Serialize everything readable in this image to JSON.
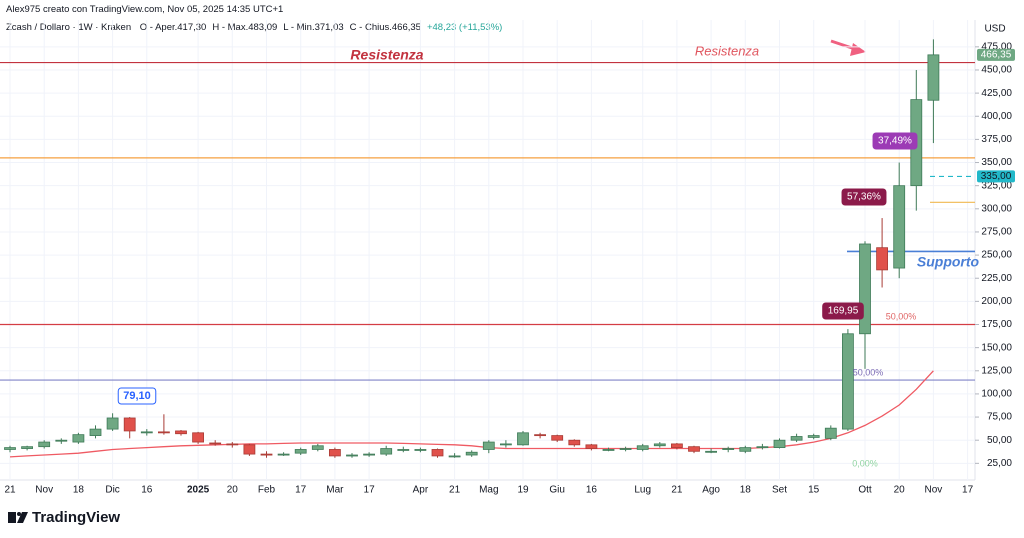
{
  "header": "Alex975 creato con TradingView.com, Nov 05, 2025 14:35 UTC+1",
  "brand": "TradingView",
  "chart_data": {
    "type": "candlestick",
    "title": "Zcash / Dollaro · 1W · Kraken",
    "legend_items": [
      "O - Aper.417,30",
      "H - Max.483,09",
      "L - Min.371,03",
      "C - Chius.466,35",
      "+48,23 (+11,53%)"
    ],
    "y_axis_label": "USD",
    "categories": [
      "21",
      null,
      "Nov",
      null,
      "18",
      null,
      "Dic",
      null,
      "16",
      null,
      null,
      "2025",
      null,
      "20",
      null,
      "Feb",
      null,
      "17",
      null,
      "Mar",
      null,
      "17",
      null,
      null,
      "Apr",
      null,
      "21",
      null,
      "Mag",
      null,
      "19",
      null,
      "Giu",
      null,
      "16",
      null,
      null,
      "Lug",
      null,
      "21",
      null,
      "Ago",
      null,
      "18",
      null,
      "Set",
      null,
      "15",
      null,
      null,
      "Ott",
      null,
      "20",
      null,
      "Nov",
      null,
      "17"
    ],
    "open": [
      40,
      41,
      43,
      49,
      48,
      55,
      62,
      74,
      58,
      59,
      60,
      58,
      47,
      46,
      45,
      35,
      35,
      36,
      40,
      40,
      33,
      34,
      35,
      40,
      40,
      40,
      33,
      34,
      40,
      46,
      45,
      56,
      55,
      50,
      45,
      40,
      40,
      40,
      44,
      46,
      43,
      38,
      40,
      38,
      42,
      42,
      50,
      53,
      52,
      62,
      165,
      258,
      236,
      325,
      417.3,
      null,
      null
    ],
    "high": [
      44,
      44,
      50,
      52,
      58,
      66,
      79.1,
      75,
      62,
      78,
      61,
      59,
      50,
      48,
      46,
      38,
      37,
      42,
      46,
      42,
      36,
      37,
      44,
      43,
      42,
      41,
      36,
      39,
      50,
      50,
      60,
      58,
      56,
      51,
      46,
      42,
      43,
      46,
      48,
      47,
      44,
      41,
      43,
      44,
      46,
      52,
      57,
      57,
      66,
      170,
      265,
      290,
      350,
      450,
      483.09,
      null,
      null
    ],
    "low": [
      37,
      39,
      41,
      46,
      46,
      52,
      60,
      52,
      55,
      56,
      55,
      46,
      44,
      42,
      33,
      31,
      33,
      34,
      38,
      31,
      31,
      32,
      33,
      37,
      37,
      31,
      31,
      32,
      36,
      42,
      44,
      52,
      48,
      43,
      39,
      38,
      38,
      38,
      42,
      40,
      36,
      36,
      37,
      36,
      40,
      41,
      48,
      51,
      50,
      60,
      127,
      215,
      225,
      298,
      371.03,
      null,
      null
    ],
    "close": [
      42,
      43,
      48,
      50,
      56,
      62,
      74,
      60,
      59,
      58,
      57,
      48,
      46,
      45,
      35,
      34,
      35,
      40,
      44,
      33,
      34,
      35,
      41,
      40,
      40,
      33,
      33,
      37,
      48,
      46,
      58,
      55,
      50,
      45,
      41,
      40,
      41,
      44,
      46,
      42,
      38,
      38,
      41,
      42,
      43,
      50,
      54,
      55,
      63,
      165,
      262,
      234,
      325,
      418,
      466.35,
      null,
      null
    ],
    "moving_average": [
      32,
      33,
      34,
      35,
      36,
      38,
      40,
      41,
      42,
      43,
      44,
      44.5,
      45,
      45.5,
      46,
      46,
      46.5,
      47,
      47,
      47,
      47,
      47,
      47,
      46.5,
      46,
      45.5,
      45,
      44,
      42,
      41,
      41,
      41,
      41,
      41,
      41,
      41,
      41,
      41,
      41,
      41,
      41,
      41,
      41,
      41,
      42,
      43,
      45,
      48,
      52,
      58,
      66,
      76,
      88,
      105,
      125,
      null,
      null
    ],
    "up_color": "#6fa883",
    "down_color": "#e0514b",
    "ma_color": "#ef5a63",
    "ylim": [
      7,
      504
    ],
    "yticks": [
      {
        "value": 25,
        "label": "25,00"
      },
      {
        "value": 50,
        "label": "50,00"
      },
      {
        "value": 75,
        "label": "75,00"
      },
      {
        "value": 100,
        "label": "100,00"
      },
      {
        "value": 125,
        "label": "125,00"
      },
      {
        "value": 150,
        "label": "150,00"
      },
      {
        "value": 175,
        "label": "175,00"
      },
      {
        "value": 200,
        "label": "200,00"
      },
      {
        "value": 225,
        "label": "225,00"
      },
      {
        "value": 250,
        "label": "250,00"
      },
      {
        "value": 275,
        "label": "275,00"
      },
      {
        "value": 300,
        "label": "300,00"
      },
      {
        "value": 325,
        "label": "325,00"
      },
      {
        "value": 350,
        "label": "350,00"
      },
      {
        "value": 375,
        "label": "375,00"
      },
      {
        "value": 400,
        "label": "400,00"
      },
      {
        "value": 425,
        "label": "425,00"
      },
      {
        "value": 450,
        "label": "450,00"
      },
      {
        "value": 475,
        "label": "475,00"
      }
    ],
    "grid": true,
    "levels": [
      {
        "value": 458,
        "color": "#c2333f"
      },
      {
        "value": 355,
        "color": "#f5a040"
      },
      {
        "value": 175,
        "color": "#d43d44"
      },
      {
        "value": 115,
        "color": "#8084c8"
      },
      {
        "value": 254,
        "color": "#4a7fd6"
      },
      {
        "value": 307,
        "color": "#f0b850"
      },
      {
        "value": 335,
        "color": "#22b8c9"
      }
    ],
    "price_labels": [
      {
        "value": 466.35,
        "label": "466,35",
        "color": "#6fa883"
      },
      {
        "value": 335,
        "label": "335,00",
        "color": "#22b8c9"
      }
    ],
    "annotations": [
      "Resistenza",
      "Resistenza",
      "Supporto",
      "79,10",
      "169,95",
      "57,36%",
      "37,49%",
      "50,00%",
      "50,00%",
      "0,00%"
    ]
  }
}
